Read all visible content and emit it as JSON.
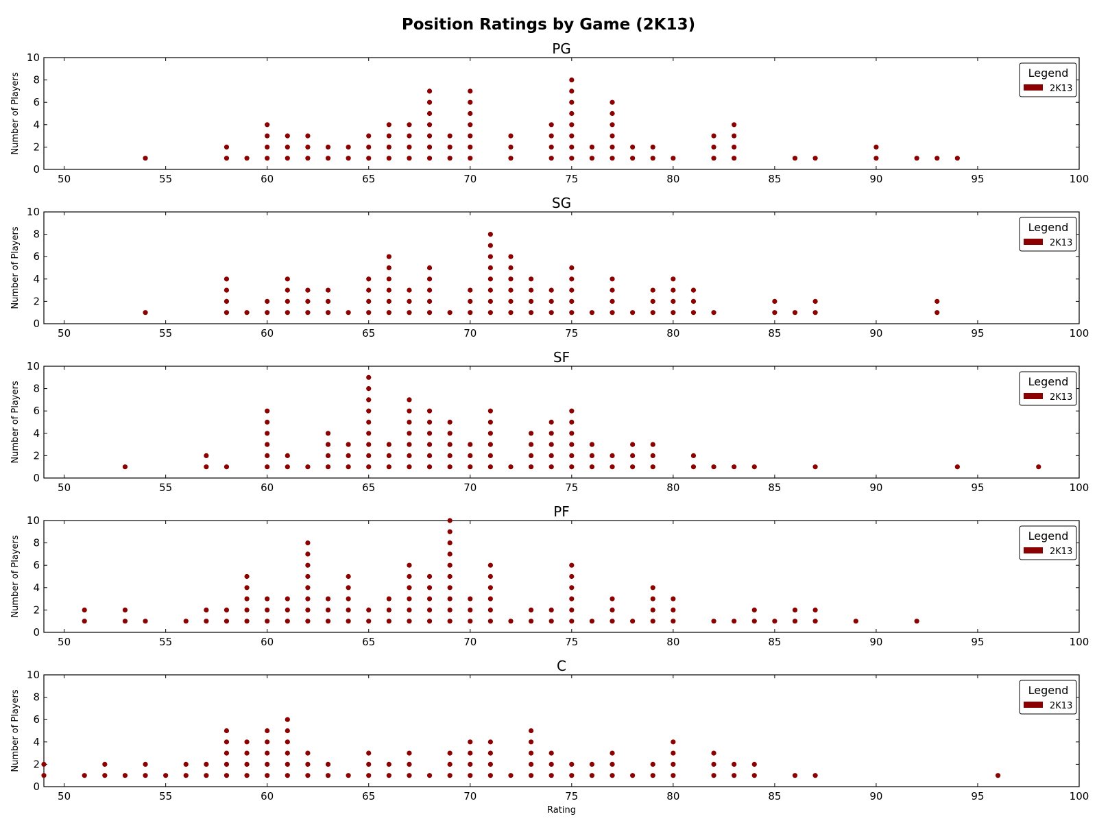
{
  "title": "Position Ratings by Game (2K13)",
  "colors": {
    "points": "#8b0000"
  },
  "chart_data": [
    {
      "type": "scatter",
      "title": "PG",
      "xlabel": "",
      "ylabel": "Number of Players",
      "xlim": [
        49,
        100
      ],
      "ylim": [
        0,
        10
      ],
      "xticks": [
        50,
        55,
        60,
        65,
        70,
        75,
        80,
        85,
        90,
        95,
        100
      ],
      "yticks": [
        0,
        2,
        4,
        6,
        8,
        10
      ],
      "legend": {
        "title": "Legend",
        "position": "top-right",
        "entries": [
          "2K13"
        ]
      },
      "series": [
        {
          "name": "2K13",
          "x": [
            54,
            58,
            59,
            60,
            61,
            62,
            63,
            64,
            65,
            66,
            67,
            68,
            69,
            70,
            72,
            74,
            75,
            76,
            77,
            78,
            79,
            80,
            82,
            83,
            86,
            87,
            90,
            92,
            93,
            94
          ],
          "counts": [
            1,
            2,
            1,
            4,
            3,
            3,
            2,
            2,
            3,
            4,
            4,
            7,
            3,
            7,
            3,
            4,
            8,
            2,
            6,
            2,
            2,
            1,
            3,
            4,
            1,
            1,
            2,
            1,
            1,
            1
          ]
        }
      ]
    },
    {
      "type": "scatter",
      "title": "SG",
      "xlabel": "",
      "ylabel": "Number of Players",
      "xlim": [
        49,
        100
      ],
      "ylim": [
        0,
        10
      ],
      "xticks": [
        50,
        55,
        60,
        65,
        70,
        75,
        80,
        85,
        90,
        95,
        100
      ],
      "yticks": [
        0,
        2,
        4,
        6,
        8,
        10
      ],
      "legend": {
        "title": "Legend",
        "position": "top-right",
        "entries": [
          "2K13"
        ]
      },
      "series": [
        {
          "name": "2K13",
          "x": [
            54,
            58,
            59,
            60,
            61,
            62,
            63,
            64,
            65,
            66,
            67,
            68,
            69,
            70,
            71,
            72,
            73,
            74,
            75,
            76,
            77,
            78,
            79,
            80,
            81,
            82,
            85,
            86,
            87,
            93
          ],
          "counts": [
            1,
            4,
            1,
            2,
            4,
            3,
            3,
            1,
            4,
            6,
            3,
            5,
            1,
            3,
            8,
            6,
            4,
            3,
            5,
            1,
            4,
            1,
            3,
            4,
            3,
            1,
            2,
            1,
            2,
            2
          ]
        }
      ]
    },
    {
      "type": "scatter",
      "title": "SF",
      "xlabel": "",
      "ylabel": "Number of Players",
      "xlim": [
        49,
        100
      ],
      "ylim": [
        0,
        10
      ],
      "xticks": [
        50,
        55,
        60,
        65,
        70,
        75,
        80,
        85,
        90,
        95,
        100
      ],
      "yticks": [
        0,
        2,
        4,
        6,
        8,
        10
      ],
      "legend": {
        "title": "Legend",
        "position": "top-right",
        "entries": [
          "2K13"
        ]
      },
      "series": [
        {
          "name": "2K13",
          "x": [
            53,
            57,
            58,
            60,
            61,
            62,
            63,
            64,
            65,
            66,
            67,
            68,
            69,
            70,
            71,
            72,
            73,
            74,
            75,
            76,
            77,
            78,
            79,
            81,
            82,
            83,
            84,
            87,
            94,
            98
          ],
          "counts": [
            1,
            2,
            1,
            6,
            2,
            1,
            4,
            3,
            9,
            3,
            7,
            6,
            5,
            3,
            6,
            1,
            4,
            5,
            6,
            3,
            2,
            3,
            3,
            2,
            1,
            1,
            1,
            1,
            1,
            1
          ]
        }
      ]
    },
    {
      "type": "scatter",
      "title": "PF",
      "xlabel": "",
      "ylabel": "Number of Players",
      "xlim": [
        49,
        100
      ],
      "ylim": [
        0,
        10
      ],
      "xticks": [
        50,
        55,
        60,
        65,
        70,
        75,
        80,
        85,
        90,
        95,
        100
      ],
      "yticks": [
        0,
        2,
        4,
        6,
        8,
        10
      ],
      "legend": {
        "title": "Legend",
        "position": "top-right",
        "entries": [
          "2K13"
        ]
      },
      "series": [
        {
          "name": "2K13",
          "x": [
            51,
            53,
            54,
            56,
            57,
            58,
            59,
            60,
            61,
            62,
            63,
            64,
            65,
            66,
            67,
            68,
            69,
            70,
            71,
            72,
            73,
            74,
            75,
            76,
            77,
            78,
            79,
            80,
            82,
            83,
            84,
            85,
            86,
            87,
            89,
            92
          ],
          "counts": [
            2,
            2,
            1,
            1,
            2,
            2,
            5,
            3,
            3,
            8,
            3,
            5,
            2,
            3,
            6,
            5,
            10,
            3,
            6,
            1,
            2,
            2,
            6,
            1,
            3,
            1,
            4,
            3,
            1,
            1,
            2,
            1,
            2,
            2,
            1,
            1
          ]
        }
      ]
    },
    {
      "type": "scatter",
      "title": "C",
      "xlabel": "Rating",
      "ylabel": "Number of Players",
      "xlim": [
        49,
        100
      ],
      "ylim": [
        0,
        10
      ],
      "xticks": [
        50,
        55,
        60,
        65,
        70,
        75,
        80,
        85,
        90,
        95,
        100
      ],
      "yticks": [
        0,
        2,
        4,
        6,
        8,
        10
      ],
      "legend": {
        "title": "Legend",
        "position": "top-right",
        "entries": [
          "2K13"
        ]
      },
      "series": [
        {
          "name": "2K13",
          "x": [
            49,
            51,
            52,
            53,
            54,
            55,
            56,
            57,
            58,
            59,
            60,
            61,
            62,
            63,
            64,
            65,
            66,
            67,
            68,
            69,
            70,
            71,
            72,
            73,
            74,
            75,
            76,
            77,
            78,
            79,
            80,
            82,
            83,
            84,
            86,
            87,
            96
          ],
          "counts": [
            2,
            1,
            2,
            1,
            2,
            1,
            2,
            2,
            5,
            4,
            5,
            6,
            3,
            2,
            1,
            3,
            2,
            3,
            1,
            3,
            4,
            4,
            1,
            5,
            3,
            2,
            2,
            3,
            1,
            2,
            4,
            3,
            2,
            2,
            1,
            1,
            1
          ]
        }
      ]
    }
  ]
}
